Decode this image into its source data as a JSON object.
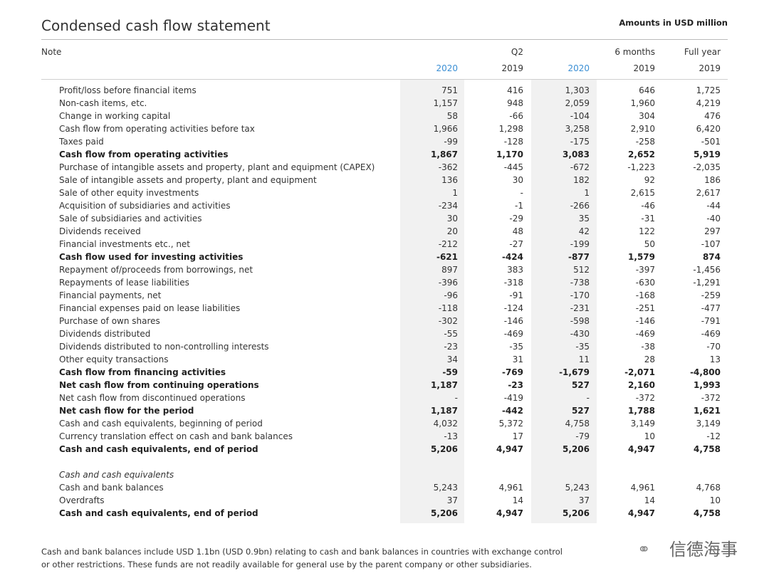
{
  "title": "Condensed cash flow statement",
  "units": "Amounts in USD million",
  "header": {
    "note": "Note",
    "groups": [
      {
        "label": "Q2",
        "span": [
          0,
          1
        ]
      },
      {
        "label": "6 months",
        "span": [
          2,
          3
        ]
      },
      {
        "label": "Full year",
        "span": [
          4,
          4
        ]
      }
    ],
    "years": [
      "2020",
      "2019",
      "2020",
      "2019",
      "2019"
    ]
  },
  "rows": [
    {
      "label": "Profit/loss before financial items",
      "values": [
        "751",
        "416",
        "1,303",
        "646",
        "1,725"
      ]
    },
    {
      "label": "Non-cash items, etc.",
      "values": [
        "1,157",
        "948",
        "2,059",
        "1,960",
        "4,219"
      ]
    },
    {
      "label": "Change in working capital",
      "values": [
        "58",
        "-66",
        "-104",
        "304",
        "476"
      ]
    },
    {
      "label": "Cash flow from operating activities before tax",
      "values": [
        "1,966",
        "1,298",
        "3,258",
        "2,910",
        "6,420"
      ]
    },
    {
      "label": "Taxes paid",
      "values": [
        "-99",
        "-128",
        "-175",
        "-258",
        "-501"
      ]
    },
    {
      "label": "Cash flow from operating activities",
      "values": [
        "1,867",
        "1,170",
        "3,083",
        "2,652",
        "5,919"
      ],
      "bold": true
    },
    {
      "label": "Purchase of intangible assets and property, plant and equipment (CAPEX)",
      "values": [
        "-362",
        "-445",
        "-672",
        "-1,223",
        "-2,035"
      ]
    },
    {
      "label": "Sale of intangible assets and property, plant and equipment",
      "values": [
        "136",
        "30",
        "182",
        "92",
        "186"
      ]
    },
    {
      "label": "Sale of other equity investments",
      "values": [
        "1",
        "-",
        "1",
        "2,615",
        "2,617"
      ]
    },
    {
      "label": "Acquisition of subsidiaries and activities",
      "values": [
        "-234",
        "-1",
        "-266",
        "-46",
        "-44"
      ]
    },
    {
      "label": "Sale of subsidiaries and activities",
      "values": [
        "30",
        "-29",
        "35",
        "-31",
        "-40"
      ]
    },
    {
      "label": "Dividends received",
      "values": [
        "20",
        "48",
        "42",
        "122",
        "297"
      ]
    },
    {
      "label": "Financial investments etc., net",
      "values": [
        "-212",
        "-27",
        "-199",
        "50",
        "-107"
      ]
    },
    {
      "label": "Cash flow used for investing activities",
      "values": [
        "-621",
        "-424",
        "-877",
        "1,579",
        "874"
      ],
      "bold": true
    },
    {
      "label": "Repayment of/proceeds from borrowings, net",
      "values": [
        "897",
        "383",
        "512",
        "-397",
        "-1,456"
      ]
    },
    {
      "label": "Repayments of lease liabilities",
      "values": [
        "-396",
        "-318",
        "-738",
        "-630",
        "-1,291"
      ]
    },
    {
      "label": "Financial payments, net",
      "values": [
        "-96",
        "-91",
        "-170",
        "-168",
        "-259"
      ]
    },
    {
      "label": "Financial expenses paid on lease liabilities",
      "values": [
        "-118",
        "-124",
        "-231",
        "-251",
        "-477"
      ]
    },
    {
      "label": "Purchase of own shares",
      "values": [
        "-302",
        "-146",
        "-598",
        "-146",
        "-791"
      ]
    },
    {
      "label": "Dividends distributed",
      "values": [
        "-55",
        "-469",
        "-430",
        "-469",
        "-469"
      ]
    },
    {
      "label": "Dividends distributed to non-controlling interests",
      "values": [
        "-23",
        "-35",
        "-35",
        "-38",
        "-70"
      ]
    },
    {
      "label": "Other equity transactions",
      "values": [
        "34",
        "31",
        "11",
        "28",
        "13"
      ]
    },
    {
      "label": "Cash flow from financing activities",
      "values": [
        "-59",
        "-769",
        "-1,679",
        "-2,071",
        "-4,800"
      ],
      "bold": true
    },
    {
      "label": "Net cash flow from continuing operations",
      "values": [
        "1,187",
        "-23",
        "527",
        "2,160",
        "1,993"
      ],
      "bold": true
    },
    {
      "label": "Net cash flow from discontinued operations",
      "values": [
        "-",
        "-419",
        "-",
        "-372",
        "-372"
      ]
    },
    {
      "label": "Net cash flow for the period",
      "values": [
        "1,187",
        "-442",
        "527",
        "1,788",
        "1,621"
      ],
      "bold": true
    },
    {
      "label": "Cash and cash equivalents, beginning of period",
      "values": [
        "4,032",
        "5,372",
        "4,758",
        "3,149",
        "3,149"
      ]
    },
    {
      "label": "Currency translation effect on cash and bank balances",
      "values": [
        "-13",
        "17",
        "-79",
        "10",
        "-12"
      ]
    },
    {
      "label": "Cash and cash equivalents, end of period",
      "values": [
        "5,206",
        "4,947",
        "5,206",
        "4,947",
        "4,758"
      ],
      "bold": true
    }
  ],
  "section2": {
    "heading": "Cash and cash equivalents",
    "rows": [
      {
        "label": "Cash and bank balances",
        "values": [
          "5,243",
          "4,961",
          "5,243",
          "4,961",
          "4,768"
        ]
      },
      {
        "label": "Overdrafts",
        "values": [
          "37",
          "14",
          "37",
          "14",
          "10"
        ]
      },
      {
        "label": "Cash and cash equivalents, end of period",
        "values": [
          "5,206",
          "4,947",
          "5,206",
          "4,947",
          "4,758"
        ],
        "bold": true
      }
    ]
  },
  "footnote": [
    "Cash and bank balances include USD 1.1bn (USD 0.9bn) relating to cash and bank balances in countries with exchange control",
    "or other restrictions. These funds are not readily available for general use by the parent company or other subsidiaries."
  ],
  "watermark": "信德海事"
}
